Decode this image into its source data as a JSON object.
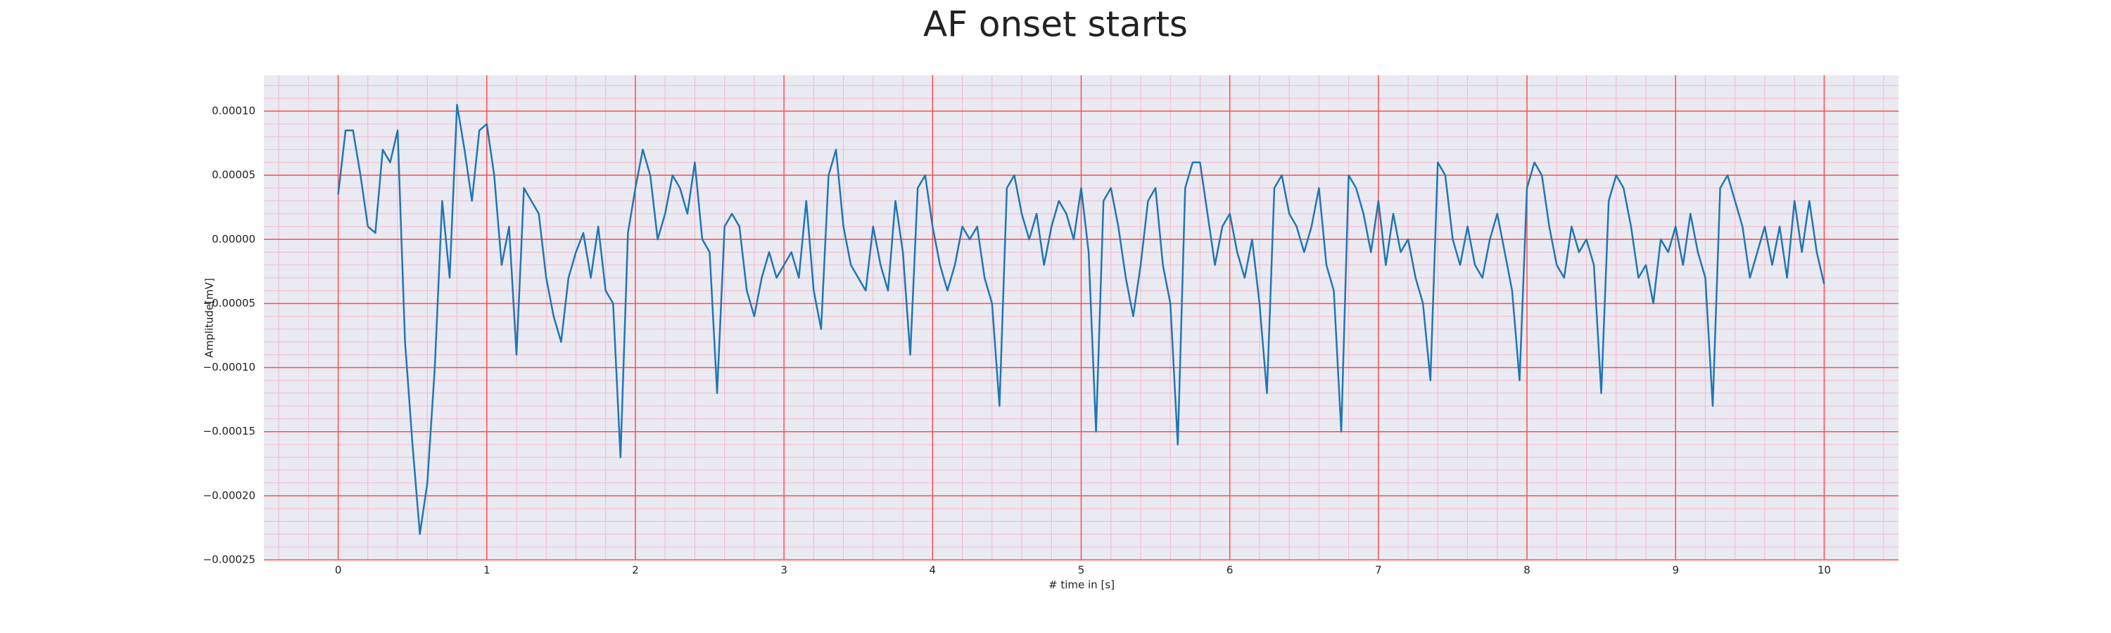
{
  "chart_data": {
    "type": "line",
    "title": "AF onset starts",
    "xlabel": "# time in [s]",
    "ylabel": "Amplitude[mV]",
    "xlim": [
      -0.5,
      10.5
    ],
    "ylim": [
      -0.00025,
      0.000128
    ],
    "xticks": [
      0,
      1,
      2,
      3,
      4,
      5,
      6,
      7,
      8,
      9,
      10
    ],
    "yticks": [
      {
        "value": -0.00025,
        "label": "−0.00025"
      },
      {
        "value": -0.0002,
        "label": "−0.00020"
      },
      {
        "value": -0.00015,
        "label": "−0.00015"
      },
      {
        "value": -0.0001,
        "label": "−0.00010"
      },
      {
        "value": -5e-05,
        "label": "−0.00005"
      },
      {
        "value": 0,
        "label": "0.00000"
      },
      {
        "value": 5e-05,
        "label": "0.00005"
      },
      {
        "value": 0.0001,
        "label": "0.00010"
      }
    ],
    "grid": true,
    "grid_color": "#ff4d4d",
    "minor_grid_color": "#f4b8c8",
    "minor_divisions": 5,
    "background": "#eaeaf2",
    "x": [
      0,
      0.05,
      0.1,
      0.15,
      0.2,
      0.25,
      0.3,
      0.35,
      0.4,
      0.45,
      0.5,
      0.55,
      0.6,
      0.65,
      0.7,
      0.75,
      0.8,
      0.85,
      0.9,
      0.95,
      1,
      1.05,
      1.1,
      1.15,
      1.2,
      1.25,
      1.3,
      1.35,
      1.4,
      1.45,
      1.5,
      1.55,
      1.6,
      1.65,
      1.7,
      1.75,
      1.8,
      1.85,
      1.9,
      1.95,
      2,
      2.05,
      2.1,
      2.15,
      2.2,
      2.25,
      2.3,
      2.35,
      2.4,
      2.45,
      2.5,
      2.55,
      2.6,
      2.65,
      2.7,
      2.75,
      2.8,
      2.85,
      2.9,
      2.95,
      3,
      3.05,
      3.1,
      3.15,
      3.2,
      3.25,
      3.3,
      3.35,
      3.4,
      3.45,
      3.5,
      3.55,
      3.6,
      3.65,
      3.7,
      3.75,
      3.8,
      3.85,
      3.9,
      3.95,
      4,
      4.05,
      4.1,
      4.15,
      4.2,
      4.25,
      4.3,
      4.35,
      4.4,
      4.45,
      4.5,
      4.55,
      4.6,
      4.65,
      4.7,
      4.75,
      4.8,
      4.85,
      4.9,
      4.95,
      5,
      5.05,
      5.1,
      5.15,
      5.2,
      5.25,
      5.3,
      5.35,
      5.4,
      5.45,
      5.5,
      5.55,
      5.6,
      5.65,
      5.7,
      5.75,
      5.8,
      5.85,
      5.9,
      5.95,
      6,
      6.05,
      6.1,
      6.15,
      6.2,
      6.25,
      6.3,
      6.35,
      6.4,
      6.45,
      6.5,
      6.55,
      6.6,
      6.65,
      6.7,
      6.75,
      6.8,
      6.85,
      6.9,
      6.95,
      7,
      7.05,
      7.1,
      7.15,
      7.2,
      7.25,
      7.3,
      7.35,
      7.4,
      7.45,
      7.5,
      7.55,
      7.6,
      7.65,
      7.7,
      7.75,
      7.8,
      7.85,
      7.9,
      7.95,
      8,
      8.05,
      8.1,
      8.15,
      8.2,
      8.25,
      8.3,
      8.35,
      8.4,
      8.45,
      8.5,
      8.55,
      8.6,
      8.65,
      8.7,
      8.75,
      8.8,
      8.85,
      8.9,
      8.95,
      9,
      9.05,
      9.1,
      9.15,
      9.2,
      9.25,
      9.3,
      9.35,
      9.4,
      9.45,
      9.5,
      9.55,
      9.6,
      9.65,
      9.7,
      9.75,
      9.8,
      9.85,
      9.9,
      9.95,
      10
    ],
    "series": [
      {
        "name": "Amplitude",
        "color": "#1f77b4",
        "values": [
          3.5e-05,
          8.5e-05,
          8.5e-05,
          5e-05,
          1e-05,
          5e-06,
          7e-05,
          6e-05,
          8.5e-05,
          -8e-05,
          -0.00016,
          -0.00023,
          -0.00019,
          -0.0001,
          3e-05,
          -3e-05,
          0.000105,
          7e-05,
          3e-05,
          8.5e-05,
          9e-05,
          5e-05,
          -2e-05,
          1e-05,
          -9e-05,
          4e-05,
          3e-05,
          2e-05,
          -3e-05,
          -6e-05,
          -8e-05,
          -3e-05,
          -1e-05,
          5e-06,
          -3e-05,
          1e-05,
          -4e-05,
          -5e-05,
          -0.00017,
          5e-06,
          4e-05,
          7e-05,
          5e-05,
          0,
          2e-05,
          5e-05,
          4e-05,
          2e-05,
          6e-05,
          0,
          -1e-05,
          -0.00012,
          1e-05,
          2e-05,
          1e-05,
          -4e-05,
          -6e-05,
          -3e-05,
          -1e-05,
          -3e-05,
          -2e-05,
          -1e-05,
          -3e-05,
          3e-05,
          -4e-05,
          -7e-05,
          5e-05,
          7e-05,
          1e-05,
          -2e-05,
          -3e-05,
          -4e-05,
          1e-05,
          -2e-05,
          -4e-05,
          3e-05,
          -1e-05,
          -9e-05,
          4e-05,
          5e-05,
          1e-05,
          -2e-05,
          -4e-05,
          -2e-05,
          1e-05,
          0,
          1e-05,
          -3e-05,
          -5e-05,
          -0.00013,
          4e-05,
          5e-05,
          2e-05,
          0,
          2e-05,
          -2e-05,
          1e-05,
          3e-05,
          2e-05,
          0,
          4e-05,
          -1e-05,
          -0.00015,
          3e-05,
          4e-05,
          1e-05,
          -3e-05,
          -6e-05,
          -2e-05,
          3e-05,
          4e-05,
          -2e-05,
          -5e-05,
          -0.00016,
          4e-05,
          6e-05,
          6e-05,
          2e-05,
          -2e-05,
          1e-05,
          2e-05,
          -1e-05,
          -3e-05,
          0,
          -5e-05,
          -0.00012,
          4e-05,
          5e-05,
          2e-05,
          1e-05,
          -1e-05,
          1e-05,
          4e-05,
          -2e-05,
          -4e-05,
          -0.00015,
          5e-05,
          4e-05,
          2e-05,
          -1e-05,
          3e-05,
          -2e-05,
          2e-05,
          -1e-05,
          0,
          -3e-05,
          -5e-05,
          -0.00011,
          6e-05,
          5e-05,
          0,
          -2e-05,
          1e-05,
          -2e-05,
          -3e-05,
          0,
          2e-05,
          -1e-05,
          -4e-05,
          -0.00011,
          4e-05,
          6e-05,
          5e-05,
          1e-05,
          -2e-05,
          -3e-05,
          1e-05,
          -1e-05,
          0,
          -2e-05,
          -0.00012,
          3e-05,
          5e-05,
          4e-05,
          1e-05,
          -3e-05,
          -2e-05,
          -5e-05,
          0,
          -1e-05,
          1e-05,
          -2e-05,
          2e-05,
          -1e-05,
          -3e-05,
          -0.00013,
          4e-05,
          5e-05,
          3e-05,
          1e-05,
          -3e-05,
          -1e-05,
          1e-05,
          -2e-05,
          1e-05,
          -3e-05,
          3e-05,
          -1e-05,
          3e-05,
          -1e-05,
          -3.5e-05
        ]
      }
    ]
  }
}
